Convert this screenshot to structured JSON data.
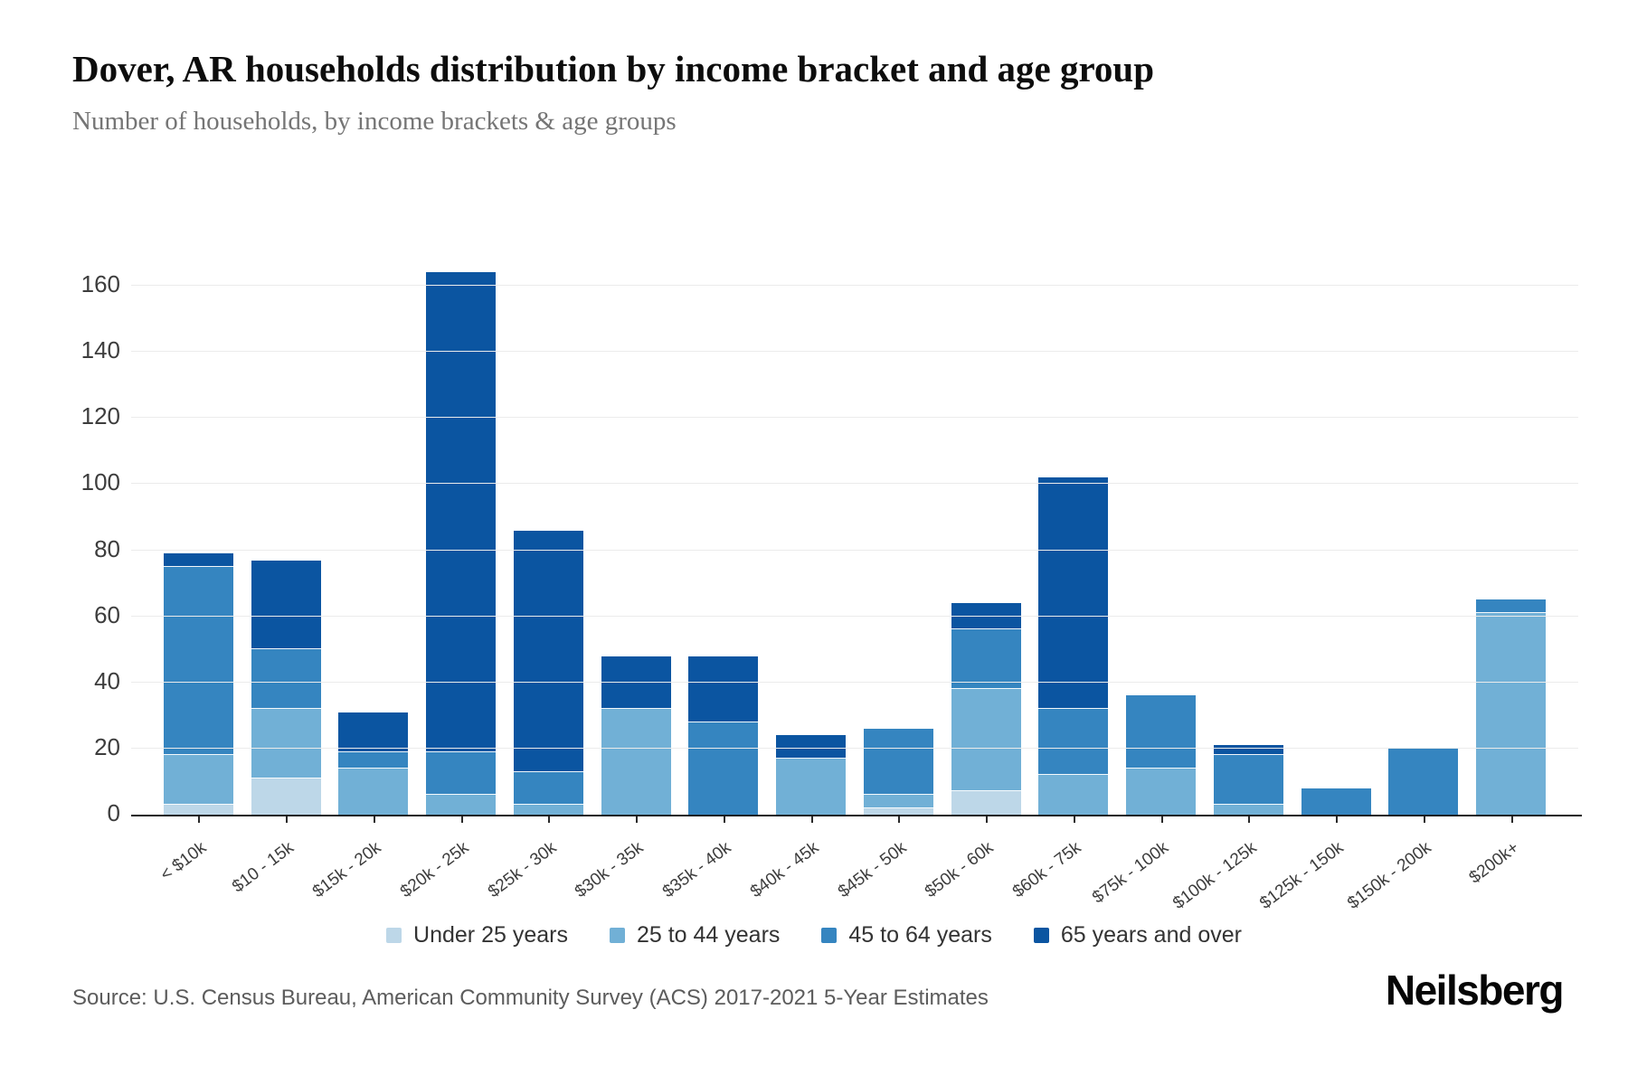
{
  "chart_data": {
    "type": "bar",
    "stacked": true,
    "title": "Dover, AR households distribution by income bracket and age group",
    "subtitle": "Number of households, by income brackets & age groups",
    "xlabel": "",
    "ylabel": "",
    "ylim": [
      0,
      170
    ],
    "yticks": [
      0,
      20,
      40,
      60,
      80,
      100,
      120,
      140,
      160
    ],
    "grid": "horizontal",
    "legend_position": "bottom-center",
    "categories": [
      "< $10k",
      "$10 - 15k",
      "$15k - 20k",
      "$20k - 25k",
      "$25k - 30k",
      "$30k - 35k",
      "$35k - 40k",
      "$40k - 45k",
      "$45k - 50k",
      "$50k - 60k",
      "$60k - 75k",
      "$75k - 100k",
      "$100k - 125k",
      "$125k - 150k",
      "$150k - 200k",
      "$200k+"
    ],
    "series": [
      {
        "name": "Under 25 years",
        "color": "#bdd7e8",
        "values": [
          3,
          11,
          0,
          0,
          0,
          0,
          0,
          0,
          2,
          7,
          0,
          0,
          0,
          0,
          0,
          0
        ]
      },
      {
        "name": "25 to 44 years",
        "color": "#71b0d6",
        "values": [
          15,
          21,
          14,
          6,
          3,
          32,
          0,
          17,
          4,
          31,
          12,
          14,
          3,
          0,
          0,
          61
        ]
      },
      {
        "name": "45 to 64 years",
        "color": "#3585c0",
        "values": [
          57,
          18,
          5,
          13,
          10,
          0,
          28,
          0,
          20,
          18,
          20,
          22,
          15,
          8,
          20,
          4
        ]
      },
      {
        "name": "65 years and over",
        "color": "#0b55a1",
        "values": [
          4,
          27,
          12,
          145,
          73,
          16,
          20,
          7,
          0,
          8,
          70,
          0,
          3,
          0,
          0,
          0
        ]
      }
    ],
    "totals": [
      79,
      77,
      31,
      164,
      86,
      48,
      48,
      24,
      26,
      64,
      102,
      36,
      21,
      8,
      20,
      65
    ],
    "source": "Source: U.S. Census Bureau, American Community Survey (ACS) 2017-2021 5-Year Estimates",
    "branding": "Neilsberg",
    "colors": {
      "axis_line": "#1c1c1c",
      "gridline": "#ebebeb",
      "tick_text": "#3d3d3d",
      "title_text": "#0d0d0d",
      "subtitle_text": "#757575",
      "source_text": "#5c5c5c"
    }
  }
}
